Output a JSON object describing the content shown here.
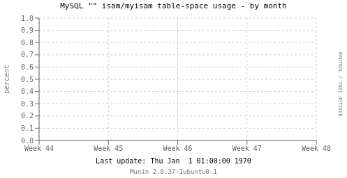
{
  "chart_data": {
    "type": "line",
    "title": "MySQL \"\" isam/myisam table-space usage - by month",
    "ylabel": "percent",
    "categories": [
      "Week 44",
      "Week 45",
      "Week 46",
      "Week 47",
      "Week 48"
    ],
    "values": [
      null,
      null,
      null,
      null,
      null
    ],
    "ylim": [
      0,
      1
    ],
    "yticks": [
      {
        "value": 0,
        "label": "0.0"
      },
      0.1,
      0.2,
      0.3,
      0.4,
      0.5,
      0.6,
      0.7,
      0.8,
      0.9,
      {
        "value": 1,
        "label": "1.0"
      }
    ],
    "grid": true,
    "annotations": [
      "Last update: Thu Jan  1 01:00:00 1970",
      "Munin 2.0.37-1ubuntu0.1",
      "RRDTOOL / TOBI OETIKER"
    ]
  }
}
